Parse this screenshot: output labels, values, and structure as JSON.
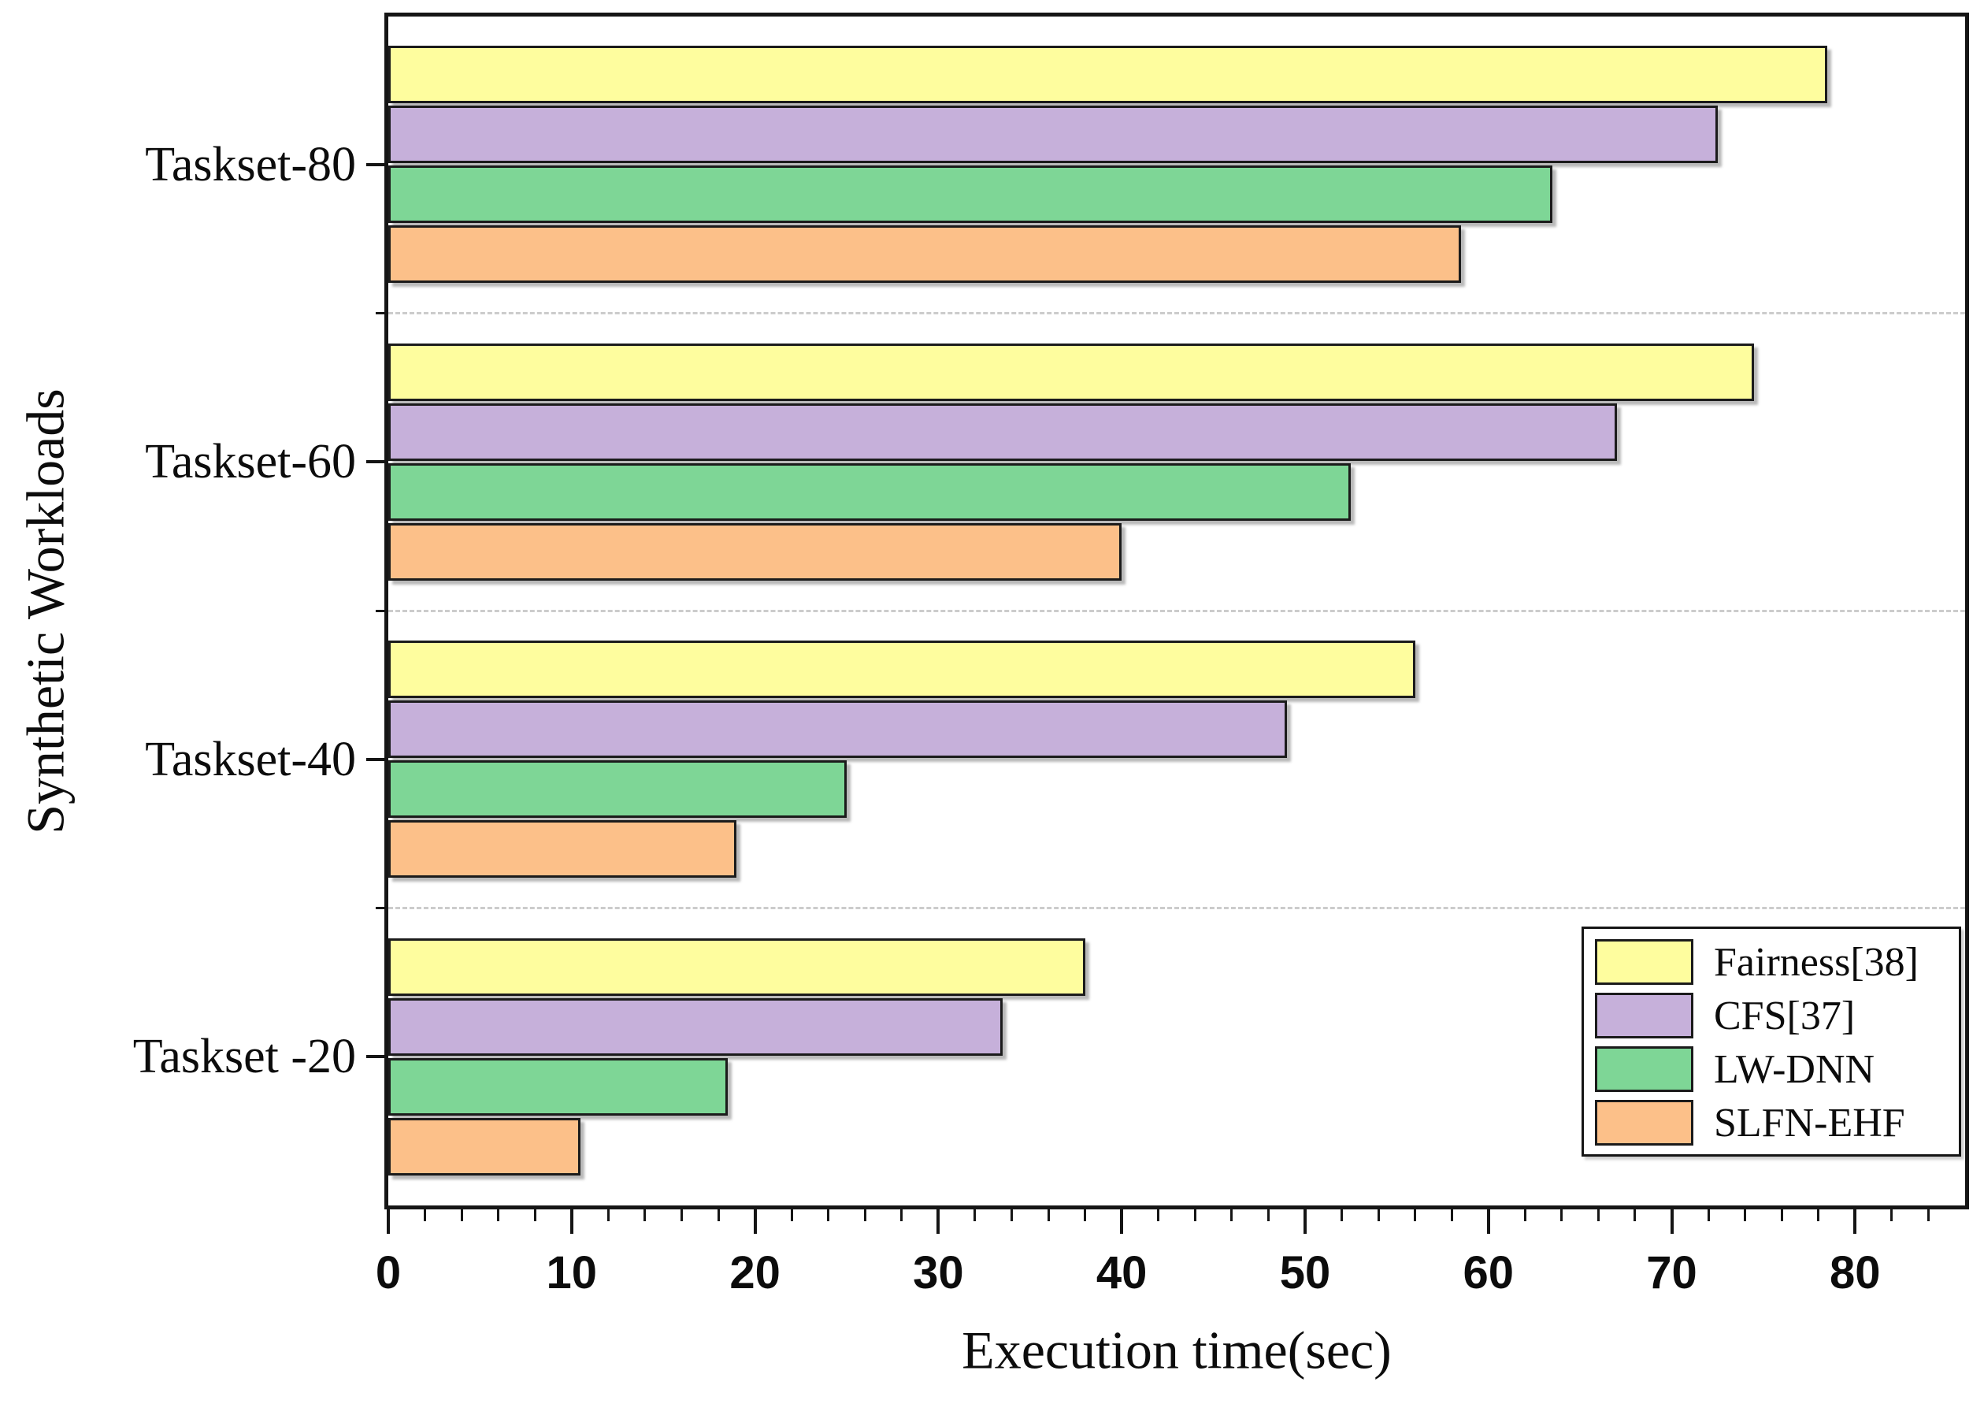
{
  "figure": {
    "background_color": "#FFFFFF",
    "frame_color": "#151515"
  },
  "chart_data": {
    "type": "bar",
    "orientation": "horizontal",
    "title": "",
    "xlabel": "Execution time(sec)",
    "ylabel": "Synthetic Workloads",
    "categories": [
      "Taskset-80",
      "Taskset-60",
      "Taskset-40",
      "Taskset -20"
    ],
    "series": [
      {
        "name": "Fairness[38]",
        "color": "#FEFD9E",
        "values": [
          78.5,
          74.5,
          56,
          38
        ]
      },
      {
        "name": "CFS[37]",
        "color": "#C6B0DA",
        "values": [
          72.5,
          67,
          49,
          33.5
        ]
      },
      {
        "name": "LW-DNN",
        "color": "#7ED696",
        "values": [
          63.5,
          52.5,
          25,
          18.5
        ]
      },
      {
        "name": "SLFN-EHF",
        "color": "#FCC089",
        "values": [
          58.5,
          40,
          19,
          10.5
        ]
      }
    ],
    "xlim": [
      0,
      86
    ],
    "x_major_ticks": [
      0,
      10,
      20,
      30,
      40,
      50,
      60,
      70,
      80
    ],
    "x_tick_labels": [
      "0",
      "10",
      "20",
      "30",
      "40",
      "50",
      "60",
      "70",
      "80"
    ],
    "x_minor_tick_step": 2,
    "bar_border_color": "#1B1B1B",
    "separator_style": "dashed horizontal lines between category groups",
    "separator_color": "#CCCCCC",
    "legend_position": "bottom-right",
    "grid": false
  }
}
